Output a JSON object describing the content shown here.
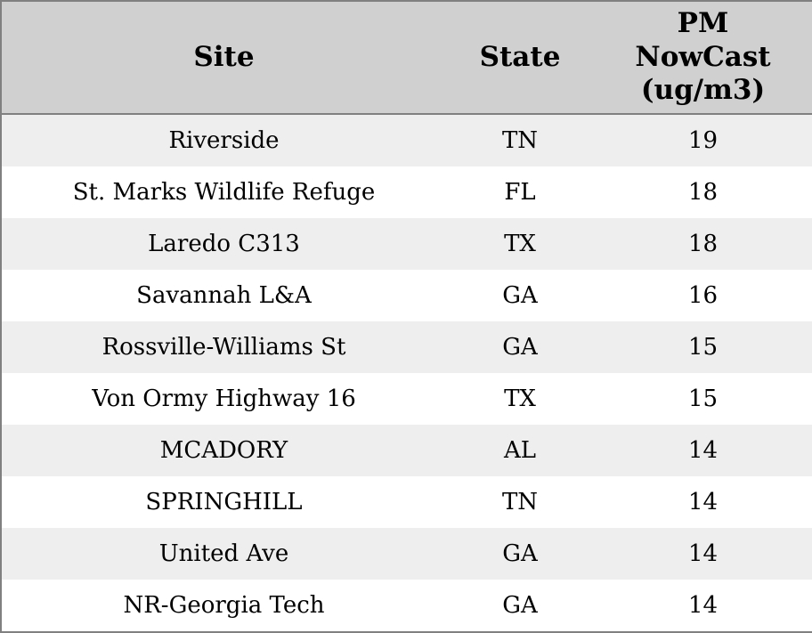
{
  "colors": {
    "header_bg": "#d0d0d0",
    "row_alt_bg": "#eeeeee",
    "row_bg": "#ffffff",
    "border": "#808080",
    "text": "#000000"
  },
  "chart_data": {
    "type": "table",
    "title": "",
    "columns": [
      "Site",
      "State",
      "PM NowCast (ug/m3)"
    ],
    "columns_display": [
      "Site",
      "State",
      "PM\nNowCast\n(ug/m3)"
    ],
    "rows": [
      [
        "Riverside",
        "TN",
        19
      ],
      [
        "St. Marks Wildlife Refuge",
        "FL",
        18
      ],
      [
        "Laredo C313",
        "TX",
        18
      ],
      [
        "Savannah L&A",
        "GA",
        16
      ],
      [
        "Rossville-Williams St",
        "GA",
        15
      ],
      [
        "Von Ormy Highway 16",
        "TX",
        15
      ],
      [
        "MCADORY",
        "AL",
        14
      ],
      [
        "SPRINGHILL",
        "TN",
        14
      ],
      [
        "United Ave",
        "GA",
        14
      ],
      [
        "NR-Georgia Tech",
        "GA",
        14
      ]
    ],
    "layout_hints": {
      "zebra_striping": true,
      "header_position": "top",
      "alignment": "center"
    }
  }
}
